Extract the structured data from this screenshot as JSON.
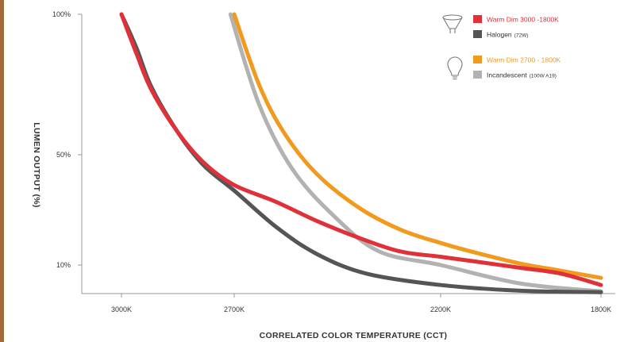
{
  "chart_data": {
    "type": "line",
    "xlabel": "CORRELATED COLOR TEMPERATURE (CCT)",
    "ylabel": "LUMEN OUTPUT (%)",
    "x_ticks": [
      "3000K",
      "2700K",
      "2200K",
      "1800K"
    ],
    "y_ticks": [
      "100%",
      "50%",
      "10%"
    ],
    "legend": [
      {
        "group": "halogen-lamp-icon",
        "label": "Warm Dim 3000 -1800K",
        "sub": "",
        "color": "#e0313a"
      },
      {
        "group": "halogen-lamp-icon",
        "label": "Halogen",
        "sub": "(72W)",
        "color": "#555555"
      },
      {
        "group": "a19-bulb-icon",
        "label": "Warm Dim 2700 - 1800K",
        "sub": "",
        "color": "#f29a1d"
      },
      {
        "group": "a19-bulb-icon",
        "label": "Incandescent",
        "sub": "(100W A19)",
        "color": "#b2b2b2"
      }
    ],
    "series": [
      {
        "name": "Incandescent",
        "color": "#b2b2b2",
        "points": [
          [
            2710,
            100
          ],
          [
            2640,
            68
          ],
          [
            2560,
            45
          ],
          [
            2460,
            28
          ],
          [
            2350,
            15
          ],
          [
            2200,
            10
          ],
          [
            2000,
            3.5
          ],
          [
            1800,
            0.8
          ]
        ]
      },
      {
        "name": "Halogen",
        "color": "#555555",
        "points": [
          [
            3000,
            100
          ],
          [
            2960,
            88
          ],
          [
            2920,
            74
          ],
          [
            2850,
            58
          ],
          [
            2780,
            46
          ],
          [
            2700,
            37
          ],
          [
            2600,
            24
          ],
          [
            2500,
            14
          ],
          [
            2380,
            7
          ],
          [
            2200,
            3
          ],
          [
            2000,
            1
          ],
          [
            1800,
            0.5
          ]
        ]
      },
      {
        "name": "Warm Dim 2700 - 1800K",
        "color": "#f29a1d",
        "points": [
          [
            2700,
            100
          ],
          [
            2640,
            75
          ],
          [
            2580,
            58
          ],
          [
            2500,
            43
          ],
          [
            2400,
            31
          ],
          [
            2300,
            23
          ],
          [
            2200,
            18
          ],
          [
            2100,
            14
          ],
          [
            2000,
            10.5
          ],
          [
            1900,
            8
          ],
          [
            1800,
            5.5
          ]
        ]
      },
      {
        "name": "Warm Dim 3000 -1800K",
        "color": "#e0313a",
        "points": [
          [
            3000,
            100
          ],
          [
            2960,
            86
          ],
          [
            2920,
            73
          ],
          [
            2850,
            58
          ],
          [
            2780,
            47
          ],
          [
            2700,
            39
          ],
          [
            2600,
            33
          ],
          [
            2500,
            26
          ],
          [
            2400,
            20
          ],
          [
            2300,
            15
          ],
          [
            2200,
            13
          ],
          [
            2100,
            11
          ],
          [
            2000,
            9
          ],
          [
            1900,
            7
          ],
          [
            1800,
            3
          ]
        ]
      }
    ]
  }
}
